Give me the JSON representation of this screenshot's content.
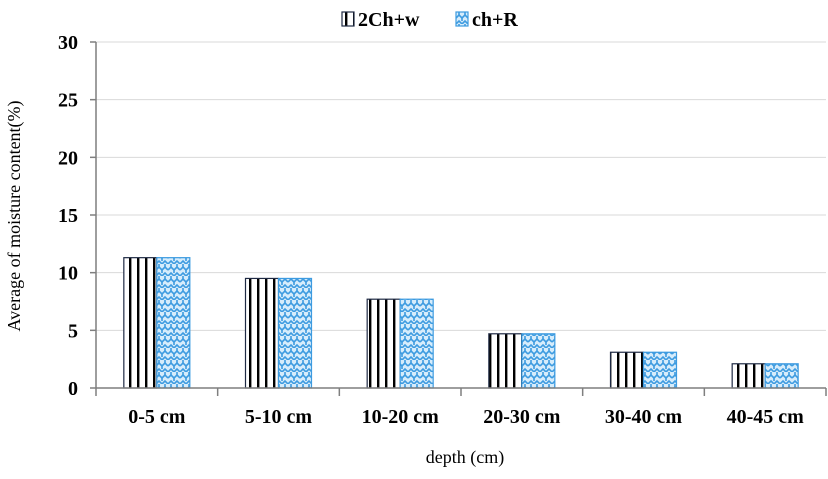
{
  "chart_data": {
    "type": "bar",
    "title": "",
    "xlabel": "depth (cm)",
    "ylabel": "Average of moisture content(%)",
    "categories": [
      "0-5 cm",
      "5-10 cm",
      "10-20 cm",
      "20-30 cm",
      "30-40 cm",
      "40-45 cm"
    ],
    "series": [
      {
        "name": "2Ch+w",
        "values": [
          11.3,
          9.5,
          7.7,
          4.7,
          3.1,
          2.1
        ],
        "color": "#1f2a44",
        "pattern": "vertical-stripes"
      },
      {
        "name": "ch+R",
        "values": [
          11.3,
          9.5,
          7.7,
          4.7,
          3.1,
          2.1
        ],
        "color": "#3d9be0",
        "pattern": "zigzag-weave"
      }
    ],
    "ylim": [
      0,
      30
    ],
    "yticks": [
      "0",
      "5",
      "10",
      "15",
      "20",
      "25",
      "30"
    ],
    "grid": true,
    "legend": "top-center"
  }
}
